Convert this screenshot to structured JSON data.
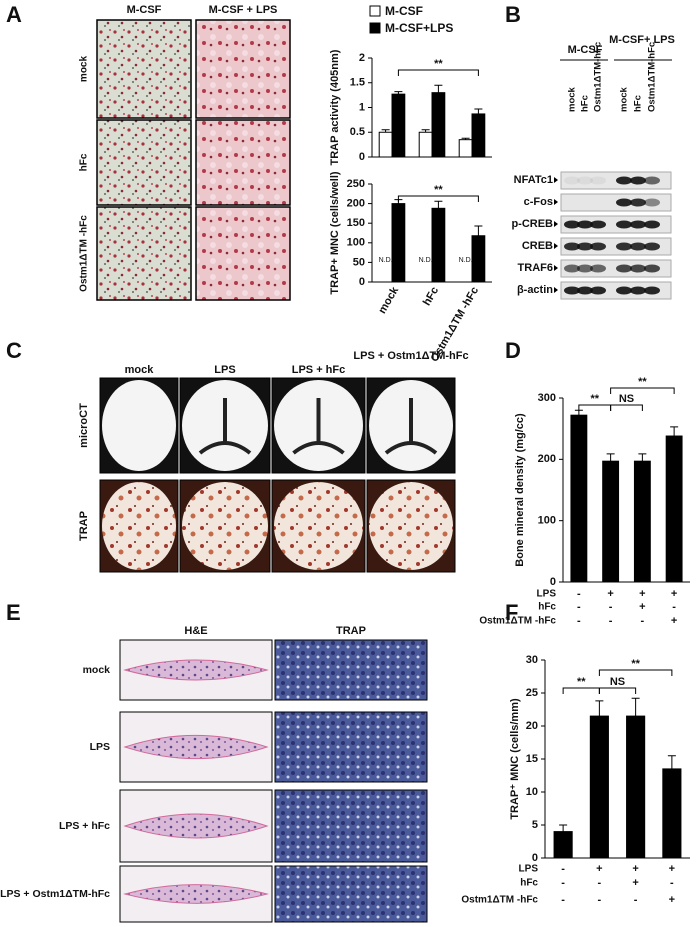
{
  "panels": [
    "A",
    "B",
    "C",
    "D",
    "E",
    "F"
  ],
  "panel_a": {
    "columns": [
      "M-CSF",
      "M-CSF + LPS"
    ],
    "rows": [
      "mock",
      "hFc",
      "Ostm1ΔTM -hFc"
    ]
  },
  "panel_b": {
    "groups": [
      "M-CSF",
      "M-CSF+ LPS"
    ],
    "lanes": [
      "mock",
      "hFc",
      "Ostm1ΔTM-hFc",
      "mock",
      "hFc",
      "Ostm1ΔTM-hFc"
    ],
    "proteins": [
      "NFATc1",
      "c-Fos",
      "p-CREB",
      "CREB",
      "TRAF6",
      "β-actin"
    ]
  },
  "panel_c": {
    "columns": [
      "mock",
      "LPS",
      "LPS + hFc",
      "LPS + Ostm1ΔTM-hFc"
    ],
    "rows": [
      "microCT",
      "TRAP"
    ]
  },
  "panel_e": {
    "columns": [
      "H&E",
      "TRAP"
    ],
    "rows": [
      "mock",
      "LPS",
      "LPS + hFc",
      "LPS + Ostm1ΔTM-hFc"
    ]
  },
  "chart_data": [
    {
      "type": "bar",
      "y_label": "TRAP activity (405nm)",
      "ylim": [
        0,
        2
      ],
      "yticks": [
        0,
        0.5,
        1,
        1.5,
        2
      ],
      "series": [
        {
          "name": "M-CSF",
          "color": "#ffffff",
          "values": [
            0.5,
            0.5,
            0.35
          ],
          "errors": [
            0.05,
            0.05,
            0.03
          ]
        },
        {
          "name": "M-CSF+LPS",
          "color": "#000000",
          "values": [
            1.27,
            1.3,
            0.87
          ],
          "errors": [
            0.05,
            0.15,
            0.1
          ]
        }
      ],
      "annotations": [
        "**"
      ],
      "legend": true
    },
    {
      "type": "bar",
      "y_label": "TRAP+ MNC (cells/well)",
      "ylim": [
        0,
        250
      ],
      "yticks": [
        0,
        50,
        100,
        150,
        200,
        250
      ],
      "categories": [
        "mock",
        "hFc",
        "Ostm1ΔTM -hFc"
      ],
      "series": [
        {
          "name": "M-CSF",
          "color": "#ffffff",
          "values": [
            null,
            null,
            null
          ],
          "value_labels": [
            "N.D.",
            "N.D.",
            "N.D."
          ]
        },
        {
          "name": "M-CSF+LPS",
          "color": "#000000",
          "values": [
            200,
            188,
            118
          ],
          "errors": [
            10,
            18,
            25
          ]
        }
      ],
      "annotations": [
        "**"
      ],
      "legend": false
    },
    {
      "type": "bar",
      "y_label": "Bone mineral density (mg/cc)",
      "ylim": [
        0,
        300
      ],
      "yticks": [
        0,
        100,
        200,
        300
      ],
      "series": [
        {
          "color": "#000000",
          "values": [
            272,
            197,
            197,
            238
          ],
          "errors": [
            8,
            12,
            12,
            15
          ]
        }
      ],
      "conditions": [
        {
          "label": "LPS",
          "signs": [
            "-",
            "+",
            "+",
            "+"
          ]
        },
        {
          "label": "hFc",
          "signs": [
            "-",
            "-",
            "+",
            "-"
          ]
        },
        {
          "label": "Ostm1ΔTM -hFc",
          "signs": [
            "-",
            "-",
            "-",
            "+"
          ]
        }
      ],
      "annotations": [
        "**",
        "NS",
        "**"
      ],
      "legend": false
    },
    {
      "type": "bar",
      "y_label": "TRAP⁺ MNC (cells/mm)",
      "ylim": [
        0,
        30
      ],
      "yticks": [
        0,
        5,
        10,
        15,
        20,
        25,
        30
      ],
      "series": [
        {
          "color": "#000000",
          "values": [
            4,
            21.5,
            21.5,
            13.5
          ],
          "errors": [
            1,
            2.3,
            2.7,
            2
          ]
        }
      ],
      "conditions": [
        {
          "label": "LPS",
          "signs": [
            "-",
            "+",
            "+",
            "+"
          ]
        },
        {
          "label": "hFc",
          "signs": [
            "-",
            "-",
            "+",
            "-"
          ]
        },
        {
          "label": "Ostm1ΔTM -hFc",
          "signs": [
            "-",
            "-",
            "-",
            "+"
          ]
        }
      ],
      "annotations": [
        "**",
        "NS",
        "**"
      ],
      "legend": false
    }
  ]
}
